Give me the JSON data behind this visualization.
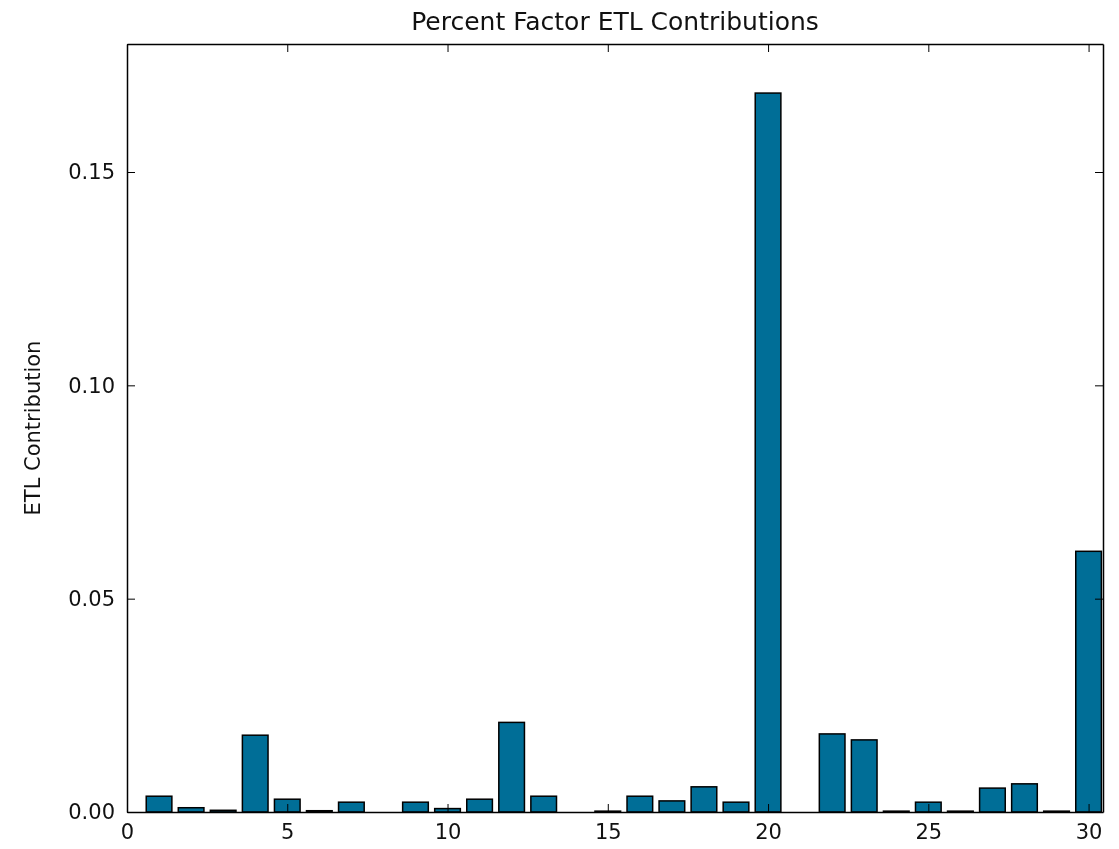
{
  "chart_data": {
    "type": "bar",
    "title": "Percent Factor ETL Contributions",
    "ylabel": "ETL Contribution",
    "x": [
      1,
      2,
      3,
      4,
      5,
      6,
      7,
      8,
      9,
      10,
      11,
      12,
      13,
      14,
      15,
      16,
      17,
      18,
      19,
      20,
      21,
      22,
      23,
      24,
      25,
      26,
      27,
      28,
      29,
      30
    ],
    "values": [
      0.0037,
      0.001,
      0.0004,
      0.018,
      0.003,
      0.0003,
      0.0023,
      0,
      0.0023,
      0.0008,
      0.003,
      0.021,
      0.0037,
      0,
      0.0002,
      0.0037,
      0.0026,
      0.0059,
      0.0023,
      0.1685,
      0,
      0.0183,
      0.0169,
      0.0002,
      0.0023,
      0.0002,
      0.0056,
      0.0066,
      0.0002,
      0.0611
    ],
    "color": "#006e97",
    "xlim": [
      0,
      30.45
    ],
    "xticks": [
      0,
      5,
      10,
      15,
      20,
      25,
      30
    ],
    "ylim": [
      0,
      0.18
    ],
    "yticks": [
      {
        "value": 0,
        "label": "0.00"
      },
      {
        "value": 0.05,
        "label": "0.05"
      },
      {
        "value": 0.1,
        "label": "0.10"
      },
      {
        "value": 0.15,
        "label": "0.15"
      }
    ],
    "grid": false
  }
}
